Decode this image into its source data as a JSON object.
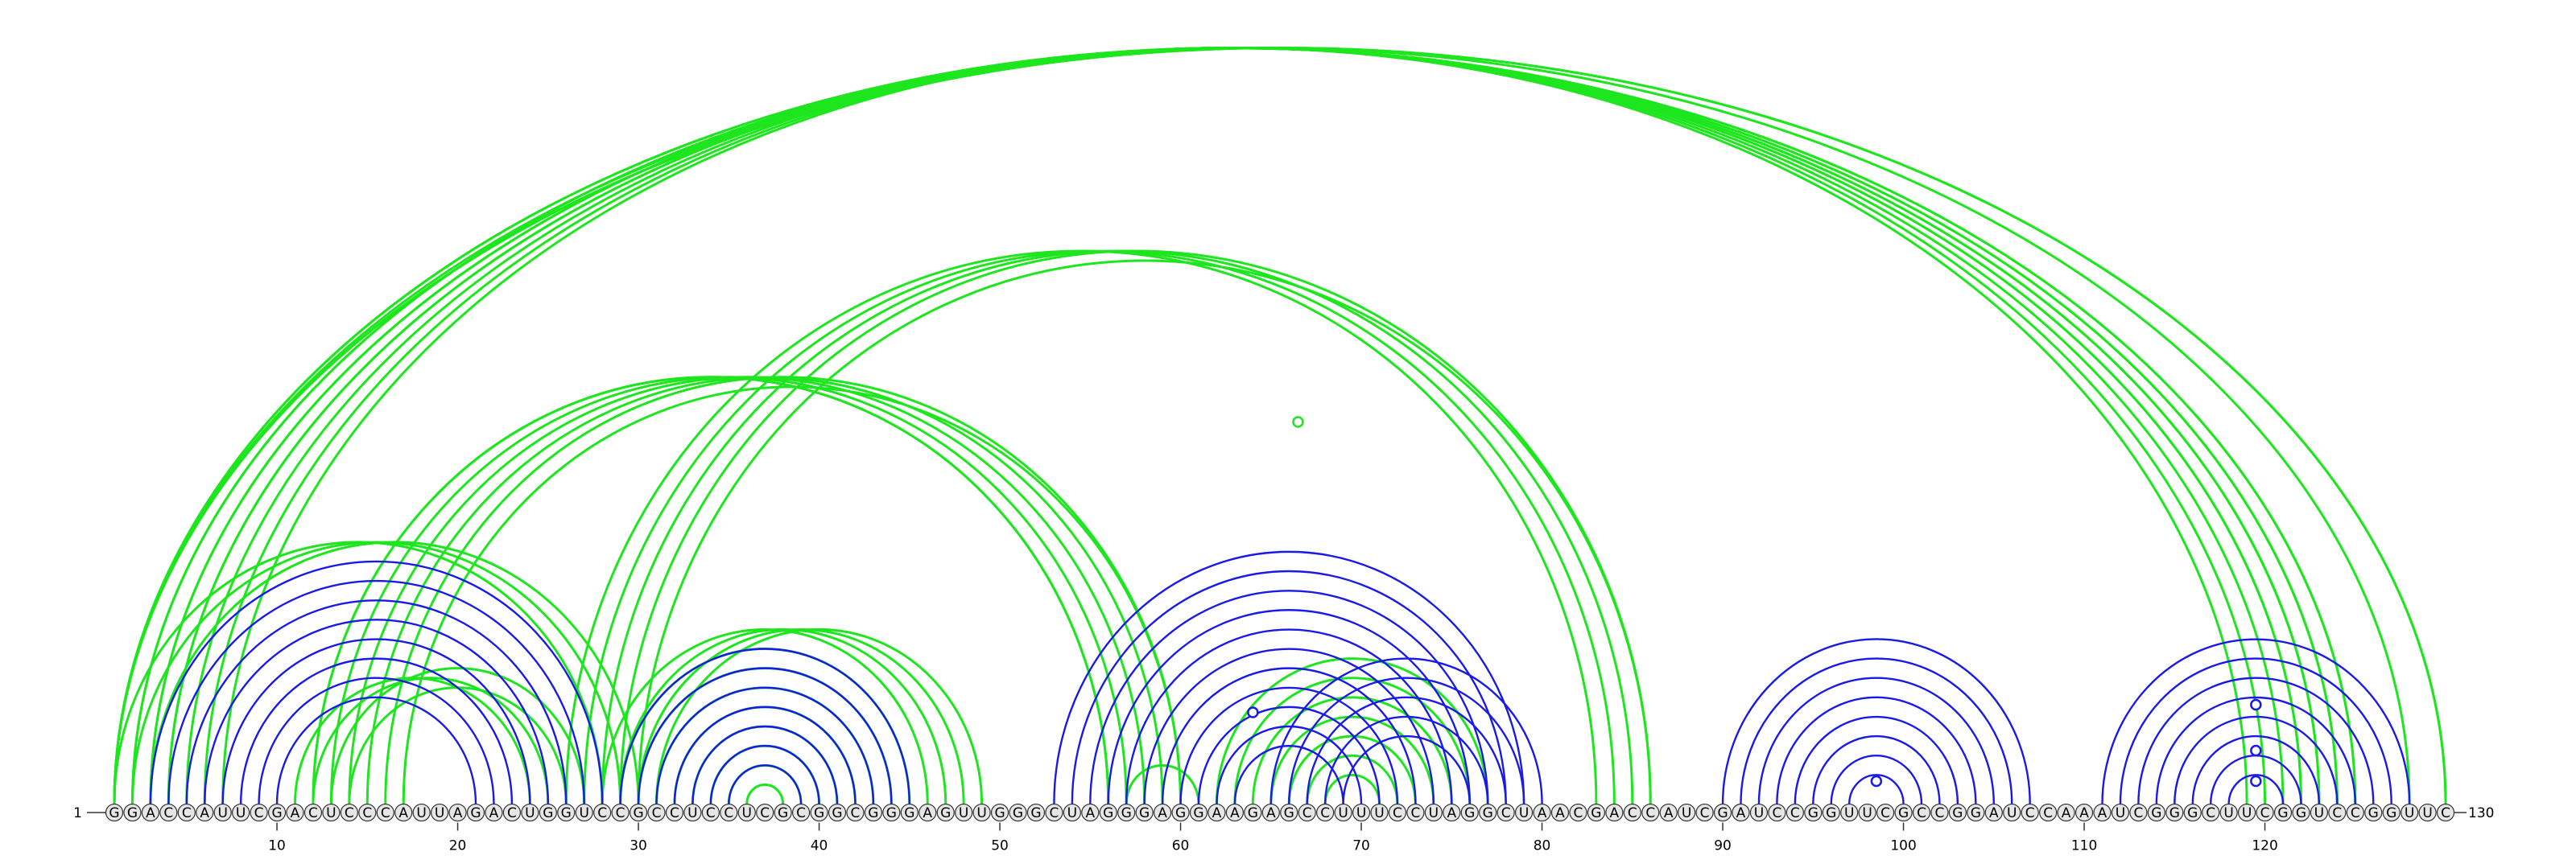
{
  "sequence": "GGACCAUUCGACUCCCAUUAGACUGGUCCGCCUCCUCGCGGCGGGAGUUGGGCUAGGGAGGAAGAGCCUUUCCUAGGCUAACGACCAUCGAUCCGGUUCGCCGGAUCCAAAUCGGGCUUCGGUCCGGUUC",
  "start_label": "1",
  "end_label": "130",
  "ticks": [
    "10",
    "20",
    "30",
    "40",
    "50",
    "60",
    "70",
    "80",
    "90",
    "100",
    "110",
    "120"
  ],
  "colors": {
    "native": "#1a1ae6",
    "alternative": "#1ee61e",
    "nucleotide_fill": "#e6e6e6",
    "nucleotide_stroke": "#333333",
    "backbone": "#333333"
  },
  "blue_arcs": [
    [
      3,
      28
    ],
    [
      4,
      27
    ],
    [
      5,
      26
    ],
    [
      6,
      25
    ],
    [
      7,
      24
    ],
    [
      8,
      23
    ],
    [
      9,
      22
    ],
    [
      10,
      21
    ],
    [
      29,
      45
    ],
    [
      30,
      44
    ],
    [
      31,
      43
    ],
    [
      32,
      42
    ],
    [
      33,
      41
    ],
    [
      34,
      40
    ],
    [
      35,
      39
    ],
    [
      53,
      79
    ],
    [
      54,
      78
    ],
    [
      55,
      77
    ],
    [
      56,
      76
    ],
    [
      57,
      75
    ],
    [
      58,
      74
    ],
    [
      59,
      73
    ],
    [
      60,
      72
    ],
    [
      61,
      71
    ],
    [
      62,
      70
    ],
    [
      63,
      69
    ],
    [
      65,
      80
    ],
    [
      66,
      79
    ],
    [
      67,
      78
    ],
    [
      68,
      77
    ],
    [
      69,
      76
    ],
    [
      90,
      107
    ],
    [
      91,
      106
    ],
    [
      92,
      105
    ],
    [
      93,
      104
    ],
    [
      94,
      103
    ],
    [
      95,
      102
    ],
    [
      96,
      101
    ],
    [
      97,
      100
    ],
    [
      111,
      128
    ],
    [
      112,
      127
    ],
    [
      113,
      126
    ],
    [
      114,
      125
    ],
    [
      115,
      124
    ],
    [
      116,
      123
    ],
    [
      117,
      122
    ],
    [
      118,
      121
    ]
  ],
  "green_arcs": [
    [
      1,
      125
    ],
    [
      1,
      125
    ],
    [
      2,
      124
    ],
    [
      2,
      124
    ],
    [
      3,
      123
    ],
    [
      3,
      123
    ],
    [
      4,
      122
    ],
    [
      4,
      122
    ],
    [
      5,
      121
    ],
    [
      6,
      120
    ],
    [
      7,
      119
    ],
    [
      1,
      128
    ],
    [
      1,
      130
    ],
    [
      1,
      130
    ],
    [
      12,
      56
    ],
    [
      12,
      56
    ],
    [
      13,
      57
    ],
    [
      14,
      58
    ],
    [
      15,
      59
    ],
    [
      16,
      60
    ],
    [
      17,
      60
    ],
    [
      26,
      83
    ],
    [
      27,
      84
    ],
    [
      28,
      85
    ],
    [
      29,
      86
    ],
    [
      30,
      86
    ],
    [
      1,
      28
    ],
    [
      2,
      29
    ],
    [
      3,
      30
    ],
    [
      11,
      24
    ],
    [
      12,
      25
    ],
    [
      13,
      27
    ],
    [
      14,
      26
    ],
    [
      28,
      46
    ],
    [
      29,
      45
    ],
    [
      30,
      44
    ],
    [
      31,
      43
    ],
    [
      32,
      42
    ],
    [
      33,
      41
    ],
    [
      34,
      40
    ],
    [
      35,
      39
    ],
    [
      36,
      38
    ],
    [
      29,
      47
    ],
    [
      30,
      48
    ],
    [
      31,
      49
    ],
    [
      57,
      61
    ],
    [
      62,
      77
    ],
    [
      63,
      76
    ],
    [
      64,
      75
    ],
    [
      65,
      74
    ],
    [
      66,
      73
    ],
    [
      67,
      72
    ],
    [
      68,
      71
    ]
  ],
  "loop_markers": [
    {
      "center": 66.5,
      "apex_depth": 0.5,
      "color": "alternative"
    },
    {
      "center": 64.0,
      "apex_depth": 0.12,
      "color": "native"
    },
    {
      "center": 98.5,
      "apex_depth": 0.03,
      "color": "native"
    },
    {
      "center": 119.5,
      "apex_depth": 0.13,
      "color": "native"
    },
    {
      "center": 119.5,
      "apex_depth": 0.07,
      "color": "native"
    },
    {
      "center": 119.5,
      "apex_depth": 0.03,
      "color": "native"
    }
  ]
}
